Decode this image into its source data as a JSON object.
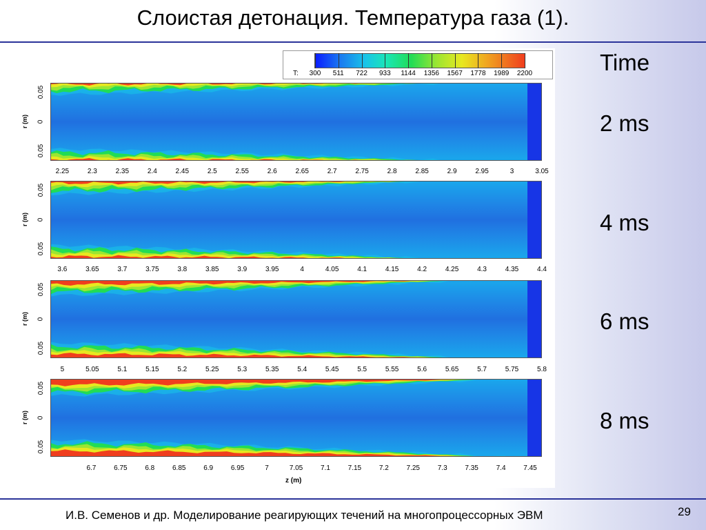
{
  "slide": {
    "title": "Слоистая детонация. Температура газа (1).",
    "footer": "И.В. Семенов и др. Моделирование реагирующих течений на многопроцессорных ЭВМ",
    "page_number": "29"
  },
  "time_labels": {
    "header": "Time",
    "items": [
      "2 ms",
      "4 ms",
      "6 ms",
      "8 ms"
    ]
  },
  "colorbar": {
    "variable": "T:",
    "ticks": [
      "300",
      "511",
      "722",
      "933",
      "1144",
      "1356",
      "1567",
      "1778",
      "1989",
      "2200"
    ],
    "colors": [
      "#0a1bff",
      "#1a7af0",
      "#18c4e8",
      "#1be6b6",
      "#22dc55",
      "#9be632",
      "#e8e820",
      "#f0a520",
      "#f03e1e"
    ]
  },
  "chart_data": [
    {
      "type": "heatmap",
      "time": "2 ms",
      "xlabel": "",
      "ylabel": "r (m)",
      "yticks": [
        "0.05",
        "0",
        "0.05"
      ],
      "xticks": [
        "2.25",
        "2.3",
        "2.35",
        "2.4",
        "2.45",
        "2.5",
        "2.55",
        "2.6",
        "2.65",
        "2.7",
        "2.75",
        "2.8",
        "2.85",
        "2.9",
        "2.95",
        "3",
        "3.05"
      ],
      "xlim": [
        2.23,
        3.05
      ],
      "colorbar_range": [
        300,
        2200
      ]
    },
    {
      "type": "heatmap",
      "time": "4 ms",
      "xlabel": "",
      "ylabel": "r (m)",
      "yticks": [
        "0.05",
        "0",
        "0.05"
      ],
      "xticks": [
        "3.6",
        "3.65",
        "3.7",
        "3.75",
        "3.8",
        "3.85",
        "3.9",
        "3.95",
        "4",
        "4.05",
        "4.1",
        "4.15",
        "4.2",
        "4.25",
        "4.3",
        "4.35",
        "4.4"
      ],
      "xlim": [
        3.58,
        4.4
      ],
      "colorbar_range": [
        300,
        2200
      ]
    },
    {
      "type": "heatmap",
      "time": "6 ms",
      "xlabel": "",
      "ylabel": "r (m)",
      "yticks": [
        "0.05",
        "0",
        "0.05"
      ],
      "xticks": [
        "5",
        "5.05",
        "5.1",
        "5.15",
        "5.2",
        "5.25",
        "5.3",
        "5.35",
        "5.4",
        "5.45",
        "5.5",
        "5.55",
        "5.6",
        "5.65",
        "5.7",
        "5.75",
        "5.8"
      ],
      "xlim": [
        4.98,
        5.8
      ],
      "colorbar_range": [
        300,
        2200
      ]
    },
    {
      "type": "heatmap",
      "time": "8 ms",
      "xlabel": "z (m)",
      "ylabel": "r (m)",
      "yticks": [
        "0.05",
        "0",
        "0.05"
      ],
      "xticks": [
        "6.7",
        "6.75",
        "6.8",
        "6.85",
        "6.9",
        "6.95",
        "7",
        "7.05",
        "7.1",
        "7.15",
        "7.2",
        "7.25",
        "7.3",
        "7.35",
        "7.4",
        "7.45"
      ],
      "xlim": [
        6.63,
        7.47
      ],
      "colorbar_range": [
        300,
        2200
      ]
    }
  ]
}
